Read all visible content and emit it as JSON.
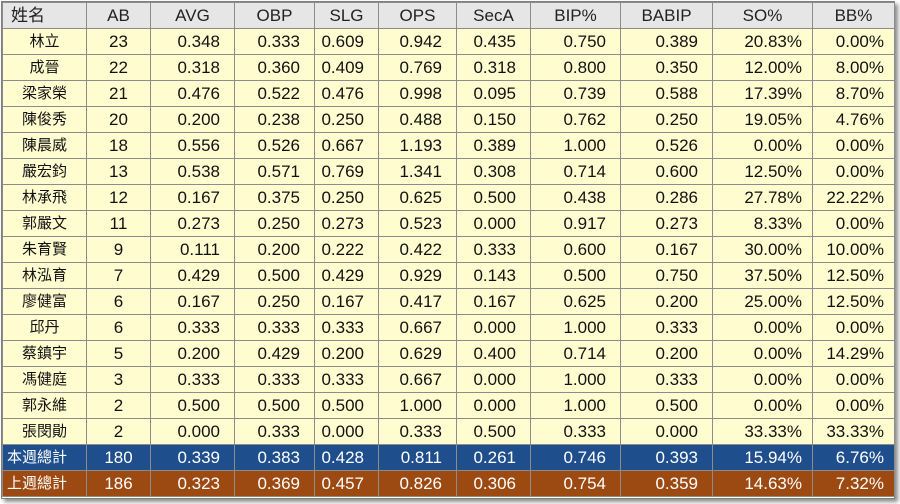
{
  "headers": [
    "姓名",
    "AB",
    "AVG",
    "OBP",
    "SLG",
    "OPS",
    "SecA",
    "BIP%",
    "BABIP",
    "SO%",
    "BB%"
  ],
  "players": [
    {
      "name": "林立",
      "ab": "23",
      "avg": "0.348",
      "obp": "0.333",
      "slg": "0.609",
      "ops": "0.942",
      "seca": "0.435",
      "bip": "0.750",
      "babip": "0.389",
      "so": "20.83%",
      "bb": "0.00%"
    },
    {
      "name": "成晉",
      "ab": "22",
      "avg": "0.318",
      "obp": "0.360",
      "slg": "0.409",
      "ops": "0.769",
      "seca": "0.318",
      "bip": "0.800",
      "babip": "0.350",
      "so": "12.00%",
      "bb": "8.00%"
    },
    {
      "name": "梁家榮",
      "ab": "21",
      "avg": "0.476",
      "obp": "0.522",
      "slg": "0.476",
      "ops": "0.998",
      "seca": "0.095",
      "bip": "0.739",
      "babip": "0.588",
      "so": "17.39%",
      "bb": "8.70%"
    },
    {
      "name": "陳俊秀",
      "ab": "20",
      "avg": "0.200",
      "obp": "0.238",
      "slg": "0.250",
      "ops": "0.488",
      "seca": "0.150",
      "bip": "0.762",
      "babip": "0.250",
      "so": "19.05%",
      "bb": "4.76%"
    },
    {
      "name": "陳晨威",
      "ab": "18",
      "avg": "0.556",
      "obp": "0.526",
      "slg": "0.667",
      "ops": "1.193",
      "seca": "0.389",
      "bip": "1.000",
      "babip": "0.526",
      "so": "0.00%",
      "bb": "0.00%"
    },
    {
      "name": "嚴宏鈞",
      "ab": "13",
      "avg": "0.538",
      "obp": "0.571",
      "slg": "0.769",
      "ops": "1.341",
      "seca": "0.308",
      "bip": "0.714",
      "babip": "0.600",
      "so": "12.50%",
      "bb": "0.00%"
    },
    {
      "name": "林承飛",
      "ab": "12",
      "avg": "0.167",
      "obp": "0.375",
      "slg": "0.250",
      "ops": "0.625",
      "seca": "0.500",
      "bip": "0.438",
      "babip": "0.286",
      "so": "27.78%",
      "bb": "22.22%"
    },
    {
      "name": "郭嚴文",
      "ab": "11",
      "avg": "0.273",
      "obp": "0.250",
      "slg": "0.273",
      "ops": "0.523",
      "seca": "0.000",
      "bip": "0.917",
      "babip": "0.273",
      "so": "8.33%",
      "bb": "0.00%"
    },
    {
      "name": "朱育賢",
      "ab": "9",
      "avg": "0.111",
      "obp": "0.200",
      "slg": "0.222",
      "ops": "0.422",
      "seca": "0.333",
      "bip": "0.600",
      "babip": "0.167",
      "so": "30.00%",
      "bb": "10.00%"
    },
    {
      "name": "林泓育",
      "ab": "7",
      "avg": "0.429",
      "obp": "0.500",
      "slg": "0.429",
      "ops": "0.929",
      "seca": "0.143",
      "bip": "0.500",
      "babip": "0.750",
      "so": "37.50%",
      "bb": "12.50%"
    },
    {
      "name": "廖健富",
      "ab": "6",
      "avg": "0.167",
      "obp": "0.250",
      "slg": "0.167",
      "ops": "0.417",
      "seca": "0.167",
      "bip": "0.625",
      "babip": "0.200",
      "so": "25.00%",
      "bb": "12.50%"
    },
    {
      "name": "邱丹",
      "ab": "6",
      "avg": "0.333",
      "obp": "0.333",
      "slg": "0.333",
      "ops": "0.667",
      "seca": "0.000",
      "bip": "1.000",
      "babip": "0.333",
      "so": "0.00%",
      "bb": "0.00%"
    },
    {
      "name": "蔡鎮宇",
      "ab": "5",
      "avg": "0.200",
      "obp": "0.429",
      "slg": "0.200",
      "ops": "0.629",
      "seca": "0.400",
      "bip": "0.714",
      "babip": "0.200",
      "so": "0.00%",
      "bb": "14.29%"
    },
    {
      "name": "馮健庭",
      "ab": "3",
      "avg": "0.333",
      "obp": "0.333",
      "slg": "0.333",
      "ops": "0.667",
      "seca": "0.000",
      "bip": "1.000",
      "babip": "0.333",
      "so": "0.00%",
      "bb": "0.00%"
    },
    {
      "name": "郭永維",
      "ab": "2",
      "avg": "0.500",
      "obp": "0.500",
      "slg": "0.500",
      "ops": "1.000",
      "seca": "0.000",
      "bip": "1.000",
      "babip": "0.500",
      "so": "0.00%",
      "bb": "0.00%"
    },
    {
      "name": "張閔勛",
      "ab": "2",
      "avg": "0.000",
      "obp": "0.333",
      "slg": "0.000",
      "ops": "0.333",
      "seca": "0.500",
      "bip": "0.333",
      "babip": "0.000",
      "so": "33.33%",
      "bb": "33.33%"
    }
  ],
  "totals": {
    "this_week": {
      "name": "本週總計",
      "ab": "180",
      "avg": "0.339",
      "obp": "0.383",
      "slg": "0.428",
      "ops": "0.811",
      "seca": "0.261",
      "bip": "0.746",
      "babip": "0.393",
      "so": "15.94%",
      "bb": "6.76%"
    },
    "last_week": {
      "name": "上週總計",
      "ab": "186",
      "avg": "0.323",
      "obp": "0.369",
      "slg": "0.457",
      "ops": "0.826",
      "seca": "0.306",
      "bip": "0.754",
      "babip": "0.359",
      "so": "14.63%",
      "bb": "7.32%"
    }
  },
  "colors": {
    "header_bg": "#e6e6e6",
    "row_bg": "#fffdd0",
    "this_week_bg": "#1f4e8c",
    "last_week_bg": "#9c4a12"
  }
}
